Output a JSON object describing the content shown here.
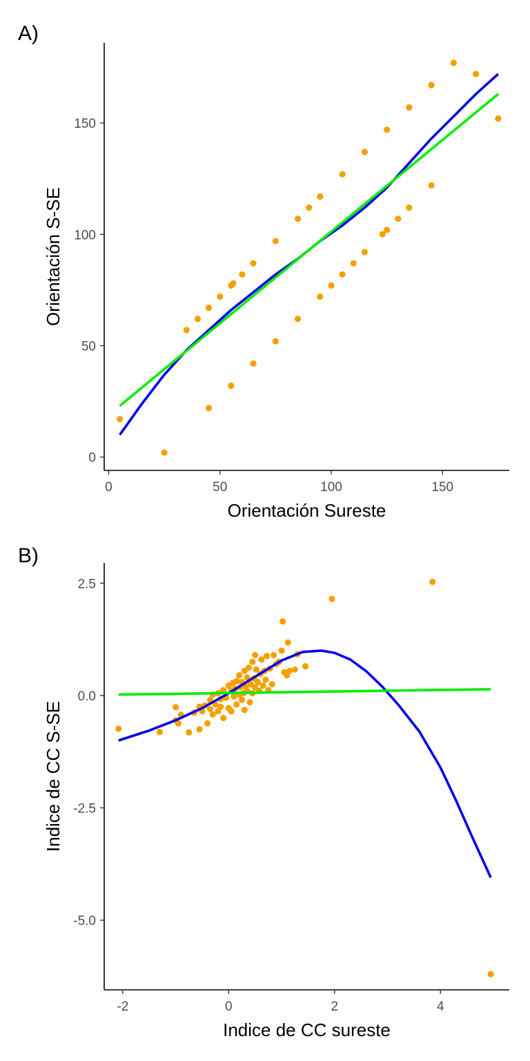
{
  "colors": {
    "points": "#F5A000",
    "curve": "#0000EE",
    "linear": "#00EE00"
  },
  "chart_data": [
    {
      "type": "scatter",
      "panel_label": "A)",
      "xlabel": "Orientación Sureste",
      "ylabel": "Orientación S-SE",
      "xlim": [
        -2,
        180
      ],
      "ylim": [
        -6,
        186
      ],
      "xticks": [
        0,
        50,
        100,
        150
      ],
      "yticks": [
        0,
        50,
        100,
        150
      ],
      "tick_labels_x": [
        "0",
        "50",
        "100",
        "150"
      ],
      "tick_labels_y": [
        "0",
        "50",
        "100",
        "150"
      ],
      "points": [
        [
          5,
          17
        ],
        [
          25,
          2
        ],
        [
          35,
          57
        ],
        [
          40,
          62
        ],
        [
          45,
          67
        ],
        [
          45,
          22
        ],
        [
          50,
          72
        ],
        [
          55,
          77
        ],
        [
          56,
          78
        ],
        [
          55,
          32
        ],
        [
          60,
          82
        ],
        [
          65,
          87
        ],
        [
          65,
          42
        ],
        [
          75,
          97
        ],
        [
          75,
          52
        ],
        [
          85,
          107
        ],
        [
          85,
          62
        ],
        [
          90,
          112
        ],
        [
          95,
          117
        ],
        [
          95,
          72
        ],
        [
          100,
          77
        ],
        [
          105,
          127
        ],
        [
          105,
          82
        ],
        [
          110,
          87
        ],
        [
          115,
          137
        ],
        [
          115,
          92
        ],
        [
          123,
          100
        ],
        [
          125,
          147
        ],
        [
          125,
          102
        ],
        [
          130,
          107
        ],
        [
          135,
          157
        ],
        [
          135,
          112
        ],
        [
          145,
          167
        ],
        [
          145,
          122
        ],
        [
          155,
          177
        ],
        [
          165,
          172
        ],
        [
          175,
          152
        ]
      ],
      "fit_curve": [
        [
          5,
          10
        ],
        [
          15,
          24
        ],
        [
          25,
          37
        ],
        [
          35,
          48
        ],
        [
          45,
          57
        ],
        [
          55,
          66
        ],
        [
          65,
          74
        ],
        [
          75,
          82
        ],
        [
          85,
          89
        ],
        [
          95,
          97
        ],
        [
          105,
          104
        ],
        [
          115,
          112
        ],
        [
          125,
          121
        ],
        [
          135,
          132
        ],
        [
          145,
          143
        ],
        [
          155,
          153
        ],
        [
          165,
          163
        ],
        [
          175,
          172
        ]
      ],
      "fit_linear": [
        [
          5,
          23
        ],
        [
          175,
          163
        ]
      ]
    },
    {
      "type": "scatter",
      "panel_label": "B)",
      "xlabel": "Indice de CC sureste",
      "ylabel": "Indice de CC S-SE",
      "xlim": [
        -2.35,
        5.3
      ],
      "ylim": [
        -6.55,
        2.95
      ],
      "xticks": [
        -2,
        0,
        2,
        4
      ],
      "yticks": [
        2.5,
        0,
        -2.5,
        -5
      ],
      "tick_labels_x": [
        "-2",
        "0",
        "2",
        "4"
      ],
      "tick_labels_y": [
        "2.5",
        "0.0",
        "-2.5",
        "-5.0"
      ],
      "points": [
        [
          -2.08,
          -0.74
        ],
        [
          -1.3,
          -0.81
        ],
        [
          -1.0,
          -0.55
        ],
        [
          -1.0,
          -0.26
        ],
        [
          -0.95,
          -0.62
        ],
        [
          -0.9,
          -0.43
        ],
        [
          -0.75,
          -0.82
        ],
        [
          -0.65,
          -0.38
        ],
        [
          -0.55,
          -0.75
        ],
        [
          -0.55,
          -0.25
        ],
        [
          -0.5,
          -0.35
        ],
        [
          -0.45,
          -0.22
        ],
        [
          -0.4,
          -0.62
        ],
        [
          -0.35,
          -0.3
        ],
        [
          -0.35,
          -0.1
        ],
        [
          -0.3,
          -0.42
        ],
        [
          -0.3,
          0.02
        ],
        [
          -0.25,
          -0.2
        ],
        [
          -0.2,
          -0.35
        ],
        [
          -0.2,
          0.05
        ],
        [
          -0.15,
          -0.08
        ],
        [
          -0.15,
          -0.25
        ],
        [
          -0.1,
          0.12
        ],
        [
          -0.1,
          -0.5
        ],
        [
          -0.05,
          -0.05
        ],
        [
          0.0,
          -0.28
        ],
        [
          0.0,
          0.22
        ],
        [
          0.05,
          -0.35
        ],
        [
          0.05,
          0.1
        ],
        [
          0.08,
          0.28
        ],
        [
          0.1,
          -0.02
        ],
        [
          0.12,
          0.15
        ],
        [
          0.15,
          0.32
        ],
        [
          0.15,
          -0.2
        ],
        [
          0.2,
          0.02
        ],
        [
          0.2,
          0.45
        ],
        [
          0.22,
          0.18
        ],
        [
          0.25,
          -0.1
        ],
        [
          0.25,
          0.3
        ],
        [
          0.28,
          0.05
        ],
        [
          0.3,
          0.55
        ],
        [
          0.3,
          -0.32
        ],
        [
          0.32,
          0.2
        ],
        [
          0.35,
          0.4
        ],
        [
          0.35,
          0.1
        ],
        [
          0.38,
          0.62
        ],
        [
          0.4,
          -0.15
        ],
        [
          0.42,
          0.25
        ],
        [
          0.45,
          0.75
        ],
        [
          0.45,
          0.05
        ],
        [
          0.48,
          0.38
        ],
        [
          0.5,
          0.9
        ],
        [
          0.5,
          0.18
        ],
        [
          0.52,
          0.58
        ],
        [
          0.55,
          0.3
        ],
        [
          0.58,
          0.1
        ],
        [
          0.6,
          0.48
        ],
        [
          0.62,
          0.8
        ],
        [
          0.65,
          0.22
        ],
        [
          0.68,
          0.55
        ],
        [
          0.7,
          0.35
        ],
        [
          0.72,
          0.88
        ],
        [
          0.75,
          0.12
        ],
        [
          0.78,
          0.6
        ],
        [
          0.82,
          0.25
        ],
        [
          0.85,
          0.9
        ],
        [
          0.9,
          0.7
        ],
        [
          0.95,
          0.75
        ],
        [
          1.0,
          1.0
        ],
        [
          1.02,
          1.65
        ],
        [
          1.05,
          0.52
        ],
        [
          1.1,
          0.45
        ],
        [
          1.12,
          1.18
        ],
        [
          1.15,
          0.55
        ],
        [
          1.25,
          0.58
        ],
        [
          1.3,
          0.92
        ],
        [
          1.45,
          0.65
        ],
        [
          1.95,
          2.15
        ],
        [
          3.85,
          2.53
        ],
        [
          4.95,
          -6.2
        ]
      ],
      "fit_curve": [
        [
          -2.08,
          -1.0
        ],
        [
          -1.5,
          -0.78
        ],
        [
          -1.0,
          -0.55
        ],
        [
          -0.5,
          -0.28
        ],
        [
          0.0,
          0.05
        ],
        [
          0.5,
          0.42
        ],
        [
          1.0,
          0.78
        ],
        [
          1.4,
          0.97
        ],
        [
          1.75,
          1.0
        ],
        [
          2.0,
          0.95
        ],
        [
          2.3,
          0.8
        ],
        [
          2.6,
          0.54
        ],
        [
          2.9,
          0.2
        ],
        [
          3.2,
          -0.2
        ],
        [
          3.6,
          -0.8
        ],
        [
          4.0,
          -1.6
        ],
        [
          4.3,
          -2.35
        ],
        [
          4.6,
          -3.15
        ],
        [
          4.95,
          -4.05
        ]
      ],
      "fit_linear": [
        [
          -2.08,
          0.02
        ],
        [
          4.95,
          0.14
        ]
      ]
    }
  ]
}
